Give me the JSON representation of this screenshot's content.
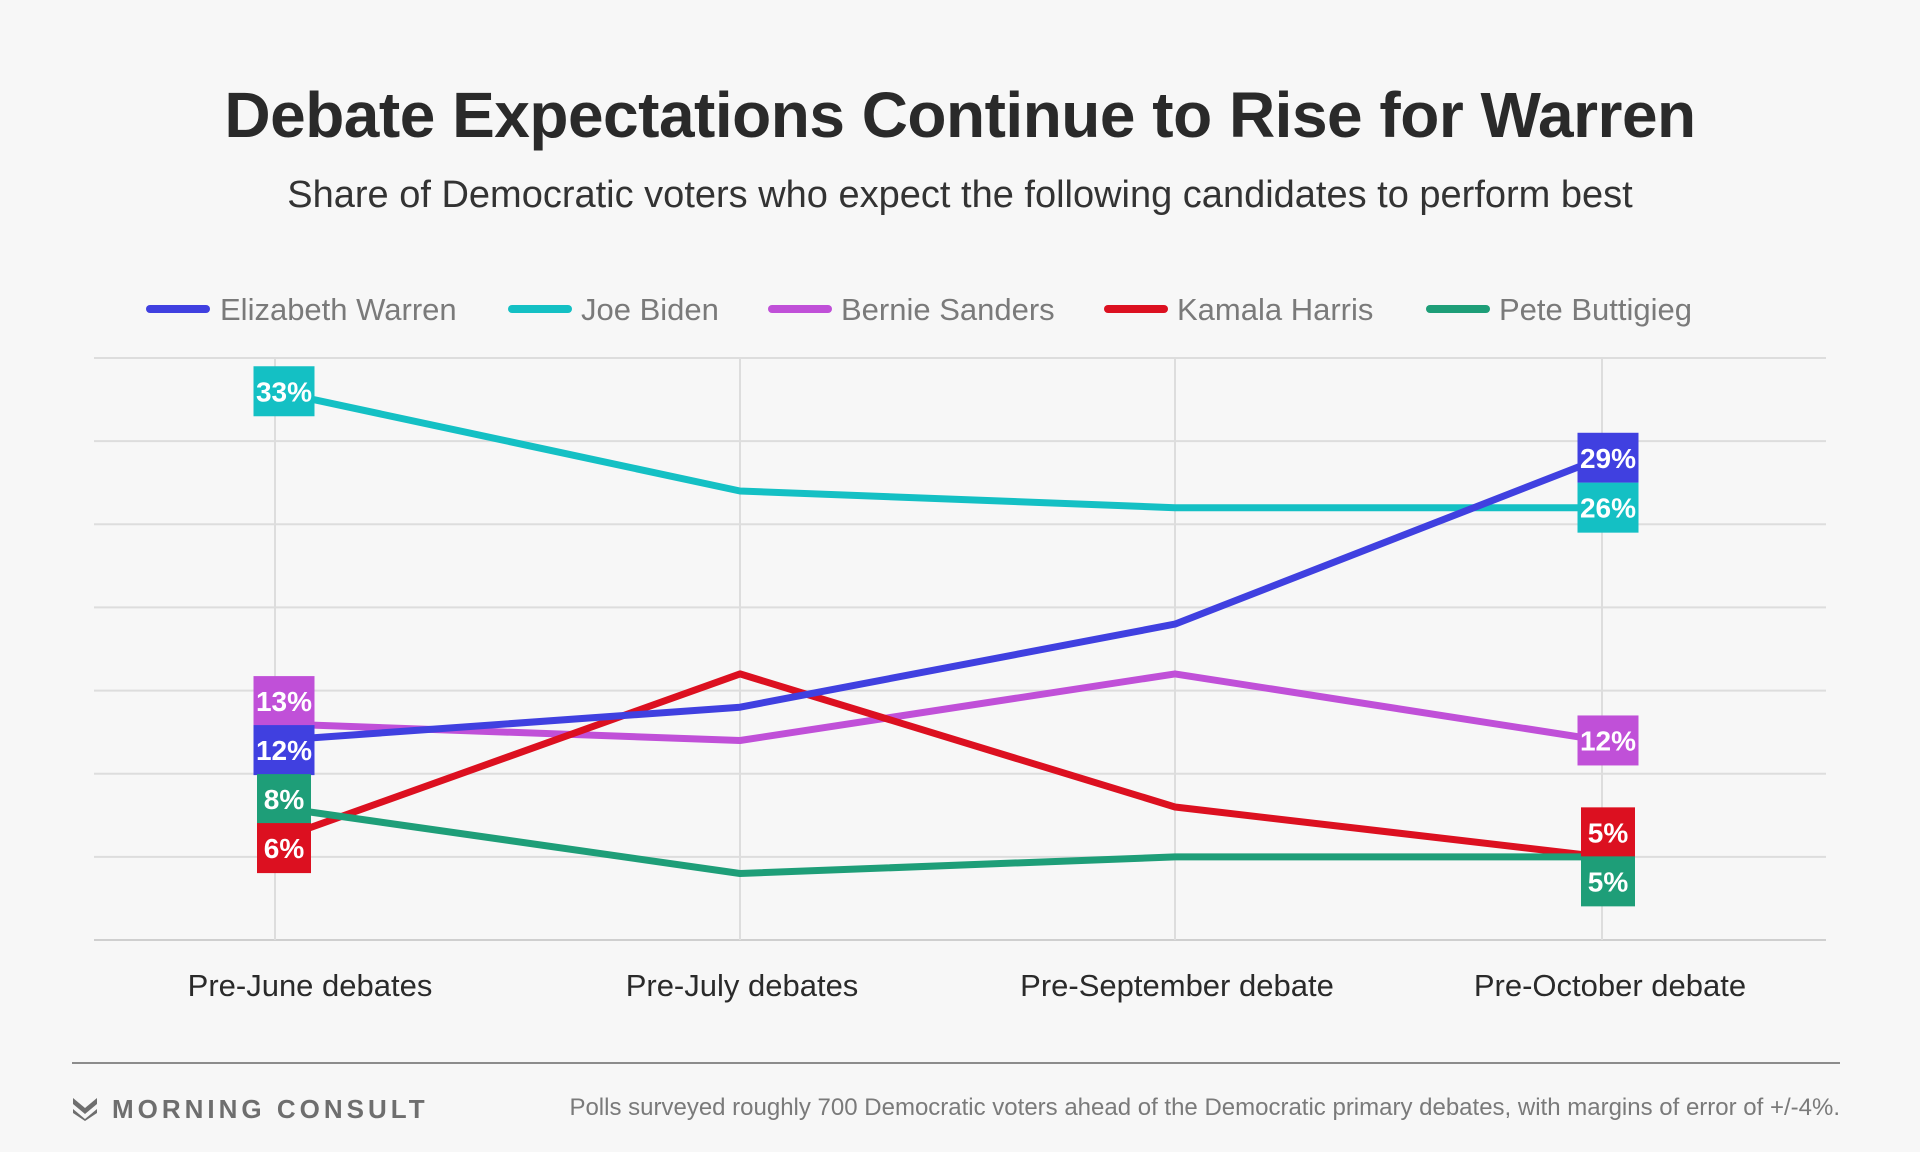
{
  "header": {
    "title": "Debate Expectations Continue to Rise for Warren",
    "subtitle": "Share of Democratic voters who expect the following candidates to perform best"
  },
  "footer": {
    "brand": "MORNING CONSULT",
    "note": "Polls surveyed roughly 700 Democratic voters ahead of the Democratic primary debates, with margins of error of +/-4%."
  },
  "chart_data": {
    "type": "line",
    "title": "Debate Expectations Continue to Rise for Warren",
    "subtitle": "Share of Democratic voters who expect the following candidates to perform best",
    "categories": [
      "Pre-June debates",
      "Pre-July debates",
      "Pre-September debate",
      "Pre-October debate"
    ],
    "ylim": [
      0,
      35
    ],
    "grid": true,
    "legend_position": "top",
    "series": [
      {
        "name": "Elizabeth Warren",
        "color": "#4040e0",
        "values": [
          12,
          14,
          19,
          29
        ],
        "labels": [
          "12%",
          "",
          "",
          "29%"
        ]
      },
      {
        "name": "Joe Biden",
        "color": "#14c0c4",
        "values": [
          33,
          27,
          26,
          26
        ],
        "labels": [
          "33%",
          "",
          "",
          "26%"
        ]
      },
      {
        "name": "Bernie Sanders",
        "color": "#c050d8",
        "values": [
          13,
          12,
          16,
          12
        ],
        "labels": [
          "13%",
          "",
          "",
          "12%"
        ]
      },
      {
        "name": "Kamala Harris",
        "color": "#dc1020",
        "values": [
          6,
          16,
          8,
          5
        ],
        "labels": [
          "6%",
          "",
          "",
          "5%"
        ]
      },
      {
        "name": "Pete Buttigieg",
        "color": "#1e9e78",
        "values": [
          8,
          4,
          5,
          5
        ],
        "labels": [
          "8%",
          "",
          "",
          "5%"
        ]
      }
    ]
  }
}
